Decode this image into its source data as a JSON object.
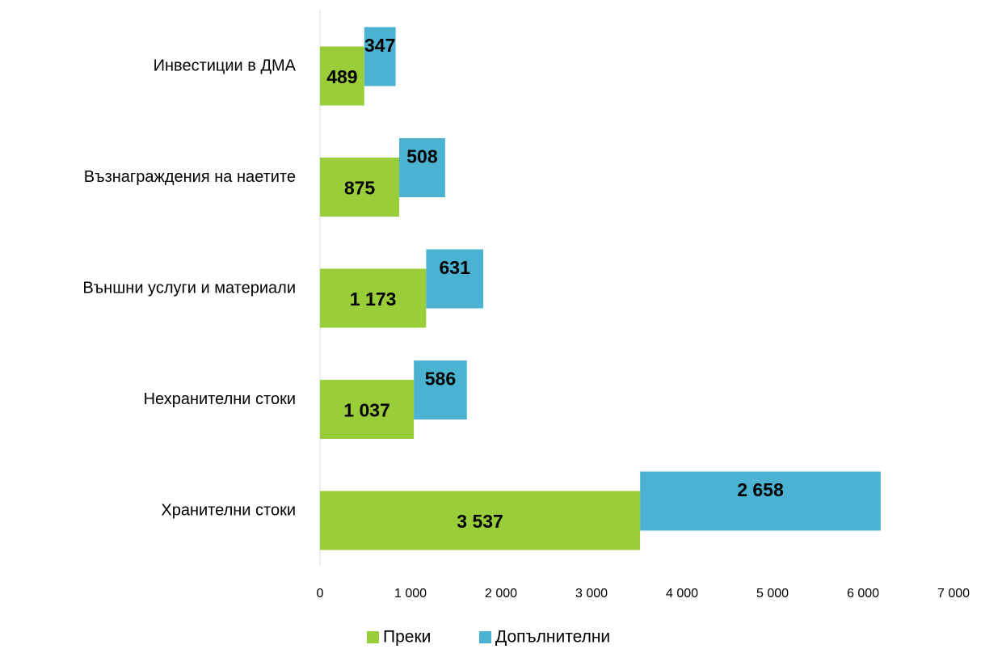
{
  "chart_data": {
    "type": "bar",
    "orientation": "horizontal",
    "stacked": true,
    "categories": [
      "Инвестиции в ДМА",
      "Възнаграждения на наетите",
      "Външни услуги и материали",
      "Нехранителни стоки",
      "Хранителни стоки"
    ],
    "series": [
      {
        "name": "Преки",
        "color": "#9acd3a",
        "values": [
          489,
          875,
          1173,
          1037,
          3537
        ],
        "value_labels": [
          "489",
          "875",
          "1 173",
          "1 037",
          "3 537"
        ]
      },
      {
        "name": "Допълнителни",
        "color": "#4bb3d1",
        "values": [
          347,
          508,
          631,
          586,
          2658
        ],
        "value_labels": [
          "347",
          "508",
          "631",
          "586",
          "2 658"
        ]
      }
    ],
    "xlim": [
      0,
      7000
    ],
    "xticks": [
      0,
      {
        "value": 1000,
        "label": "1 000"
      },
      {
        "value": 2000,
        "label": "2 000"
      },
      {
        "value": 3000,
        "label": "3 000"
      },
      {
        "value": 4000,
        "label": "4 000"
      },
      {
        "value": 5000,
        "label": "5 000"
      },
      {
        "value": 6000,
        "label": "6 000"
      },
      {
        "value": 7000,
        "label": "7 000"
      }
    ],
    "legend": "bottom"
  }
}
